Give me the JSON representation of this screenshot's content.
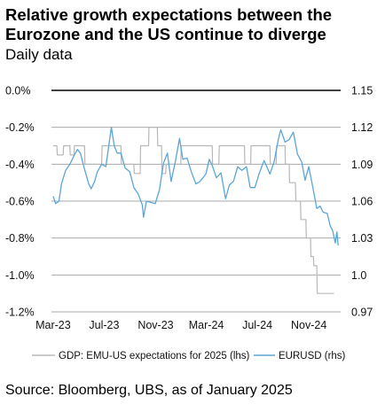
{
  "header": {
    "title": "Relative growth expectations between the Eurozone and the US continue to diverge",
    "subtitle": "Daily data"
  },
  "footer": {
    "source": "Source: Bloomberg, UBS, as of January 2025"
  },
  "colors": {
    "gdp": "#b8b8b8",
    "eurusd": "#5aa6d8",
    "grid": "#aaaaaa",
    "zero_line": "#000000"
  },
  "chart_data": {
    "type": "line",
    "x_ticks": [
      "Mar-23",
      "Jul-23",
      "Nov-23",
      "Mar-24",
      "Jul-24",
      "Nov-24"
    ],
    "y_left": {
      "ticks": [
        "0.0%",
        "-0.2%",
        "-0.4%",
        "-0.6%",
        "-0.8%",
        "-1.0%",
        "-1.2%"
      ],
      "ylim": [
        -1.2,
        0.0
      ]
    },
    "y_right": {
      "ticks": [
        "1.15",
        "1.12",
        "1.09",
        "1.06",
        "1.03",
        "1.0",
        "0.97"
      ],
      "ylim": [
        0.97,
        1.15
      ]
    },
    "grid": "horizontal",
    "legend_position": "bottom",
    "series": [
      {
        "name": "GDP: EMU-US expectations for 2025 (lhs)",
        "axis": "left",
        "points": [
          [
            "2023-03-01",
            -0.3
          ],
          [
            "2023-03-10",
            -0.3
          ],
          [
            "2023-03-11",
            -0.35
          ],
          [
            "2023-03-25",
            -0.35
          ],
          [
            "2023-03-26",
            -0.3
          ],
          [
            "2023-04-10",
            -0.3
          ],
          [
            "2023-04-11",
            -0.35
          ],
          [
            "2023-04-20",
            -0.35
          ],
          [
            "2023-04-21",
            -0.3
          ],
          [
            "2023-05-15",
            -0.3
          ],
          [
            "2023-05-16",
            -0.4
          ],
          [
            "2023-06-25",
            -0.4
          ],
          [
            "2023-06-26",
            -0.3
          ],
          [
            "2023-08-10",
            -0.3
          ],
          [
            "2023-08-11",
            -0.4
          ],
          [
            "2023-09-10",
            -0.4
          ],
          [
            "2023-09-11",
            -0.45
          ],
          [
            "2023-09-25",
            -0.45
          ],
          [
            "2023-09-26",
            -0.3
          ],
          [
            "2023-10-15",
            -0.3
          ],
          [
            "2023-10-16",
            -0.2
          ],
          [
            "2023-11-05",
            -0.2
          ],
          [
            "2023-11-06",
            -0.3
          ],
          [
            "2023-11-15",
            -0.3
          ],
          [
            "2023-11-16",
            -0.45
          ],
          [
            "2023-11-25",
            -0.45
          ],
          [
            "2023-11-26",
            -0.4
          ],
          [
            "2023-12-31",
            -0.4
          ],
          [
            "2024-01-01",
            -0.3
          ],
          [
            "2024-03-15",
            -0.3
          ],
          [
            "2024-03-16",
            -0.4
          ],
          [
            "2024-03-31",
            -0.4
          ],
          [
            "2024-04-01",
            -0.3
          ],
          [
            "2024-05-31",
            -0.3
          ],
          [
            "2024-06-01",
            -0.4
          ],
          [
            "2024-06-15",
            -0.4
          ],
          [
            "2024-06-16",
            -0.3
          ],
          [
            "2024-07-31",
            -0.3
          ],
          [
            "2024-08-01",
            -0.4
          ],
          [
            "2024-08-15",
            -0.4
          ],
          [
            "2024-08-16",
            -0.3
          ],
          [
            "2024-09-05",
            -0.3
          ],
          [
            "2024-09-06",
            -0.4
          ],
          [
            "2024-09-15",
            -0.4
          ],
          [
            "2024-09-16",
            -0.5
          ],
          [
            "2024-09-30",
            -0.5
          ],
          [
            "2024-10-01",
            -0.6
          ],
          [
            "2024-10-12",
            -0.6
          ],
          [
            "2024-10-13",
            -0.7
          ],
          [
            "2024-10-25",
            -0.7
          ],
          [
            "2024-10-26",
            -0.8
          ],
          [
            "2024-11-05",
            -0.8
          ],
          [
            "2024-11-06",
            -0.9
          ],
          [
            "2024-11-12",
            -0.9
          ],
          [
            "2024-11-13",
            -0.95
          ],
          [
            "2024-11-20",
            -0.95
          ],
          [
            "2024-11-21",
            -1.1
          ],
          [
            "2024-12-31",
            -1.1
          ]
        ]
      },
      {
        "name": "EURUSD (rhs)",
        "axis": "right",
        "points": [
          [
            "2023-03-01",
            1.064
          ],
          [
            "2023-03-07",
            1.058
          ],
          [
            "2023-03-15",
            1.06
          ],
          [
            "2023-03-21",
            1.074
          ],
          [
            "2023-03-31",
            1.085
          ],
          [
            "2023-04-10",
            1.09
          ],
          [
            "2023-04-20",
            1.097
          ],
          [
            "2023-04-28",
            1.102
          ],
          [
            "2023-05-05",
            1.099
          ],
          [
            "2023-05-15",
            1.086
          ],
          [
            "2023-05-25",
            1.074
          ],
          [
            "2023-05-31",
            1.07
          ],
          [
            "2023-06-08",
            1.076
          ],
          [
            "2023-06-15",
            1.084
          ],
          [
            "2023-06-25",
            1.09
          ],
          [
            "2023-07-05",
            1.088
          ],
          [
            "2023-07-10",
            1.1
          ],
          [
            "2023-07-18",
            1.12
          ],
          [
            "2023-07-25",
            1.105
          ],
          [
            "2023-08-01",
            1.099
          ],
          [
            "2023-08-10",
            1.099
          ],
          [
            "2023-08-20",
            1.087
          ],
          [
            "2023-08-31",
            1.084
          ],
          [
            "2023-09-10",
            1.071
          ],
          [
            "2023-09-20",
            1.066
          ],
          [
            "2023-09-30",
            1.057
          ],
          [
            "2023-10-03",
            1.047
          ],
          [
            "2023-10-10",
            1.06
          ],
          [
            "2023-10-20",
            1.059
          ],
          [
            "2023-10-31",
            1.058
          ],
          [
            "2023-11-10",
            1.069
          ],
          [
            "2023-11-20",
            1.091
          ],
          [
            "2023-11-29",
            1.099
          ],
          [
            "2023-12-08",
            1.076
          ],
          [
            "2023-12-18",
            1.092
          ],
          [
            "2023-12-28",
            1.111
          ],
          [
            "2024-01-05",
            1.094
          ],
          [
            "2024-01-15",
            1.095
          ],
          [
            "2024-01-25",
            1.084
          ],
          [
            "2024-02-05",
            1.074
          ],
          [
            "2024-02-15",
            1.076
          ],
          [
            "2024-02-29",
            1.082
          ],
          [
            "2024-03-08",
            1.094
          ],
          [
            "2024-03-15",
            1.089
          ],
          [
            "2024-03-25",
            1.079
          ],
          [
            "2024-04-05",
            1.083
          ],
          [
            "2024-04-16",
            1.062
          ],
          [
            "2024-04-25",
            1.073
          ],
          [
            "2024-05-05",
            1.076
          ],
          [
            "2024-05-15",
            1.088
          ],
          [
            "2024-05-25",
            1.085
          ],
          [
            "2024-06-05",
            1.088
          ],
          [
            "2024-06-14",
            1.071
          ],
          [
            "2024-06-25",
            1.071
          ],
          [
            "2024-07-05",
            1.082
          ],
          [
            "2024-07-17",
            1.093
          ],
          [
            "2024-07-31",
            1.082
          ],
          [
            "2024-08-10",
            1.092
          ],
          [
            "2024-08-20",
            1.11
          ],
          [
            "2024-08-26",
            1.118
          ],
          [
            "2024-09-05",
            1.108
          ],
          [
            "2024-09-15",
            1.11
          ],
          [
            "2024-09-25",
            1.116
          ],
          [
            "2024-10-05",
            1.098
          ],
          [
            "2024-10-15",
            1.092
          ],
          [
            "2024-10-23",
            1.077
          ],
          [
            "2024-11-01",
            1.088
          ],
          [
            "2024-11-10",
            1.072
          ],
          [
            "2024-11-20",
            1.054
          ],
          [
            "2024-11-28",
            1.056
          ],
          [
            "2024-12-05",
            1.051
          ],
          [
            "2024-12-15",
            1.05
          ],
          [
            "2024-12-22",
            1.04
          ],
          [
            "2024-12-28",
            1.036
          ],
          [
            "2025-01-03",
            1.026
          ],
          [
            "2025-01-07",
            1.035
          ],
          [
            "2025-01-10",
            1.024
          ]
        ]
      }
    ]
  }
}
